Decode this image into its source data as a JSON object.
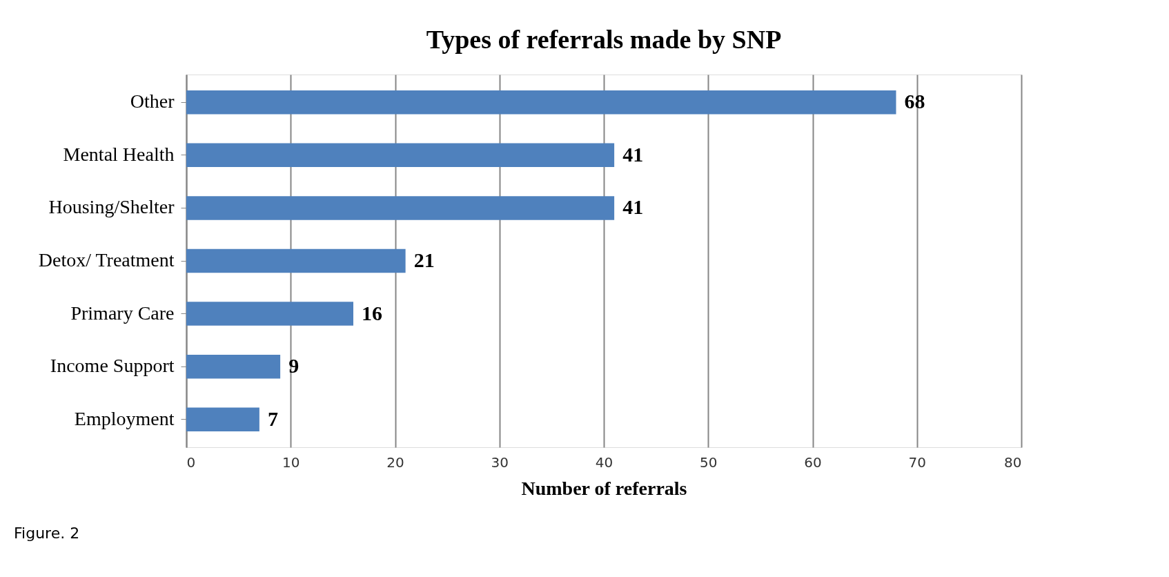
{
  "chart_data": {
    "type": "bar",
    "orientation": "horizontal",
    "title": "Types of referrals made by SNP",
    "xlabel": "Number of referrals",
    "categories": [
      "Other",
      "Mental Health",
      "Housing/Shelter",
      "Detox/ Treatment",
      "Primary Care",
      "Income Support",
      "Employment"
    ],
    "values": [
      68,
      41,
      41,
      21,
      16,
      9,
      7
    ],
    "color": "#4f81bd",
    "xlim": [
      0,
      80
    ],
    "xticks": [
      0,
      10,
      20,
      30,
      40,
      50,
      60,
      70,
      80
    ],
    "grid": "x",
    "data_labels": true,
    "annotations": [
      "Figure. 2"
    ]
  }
}
